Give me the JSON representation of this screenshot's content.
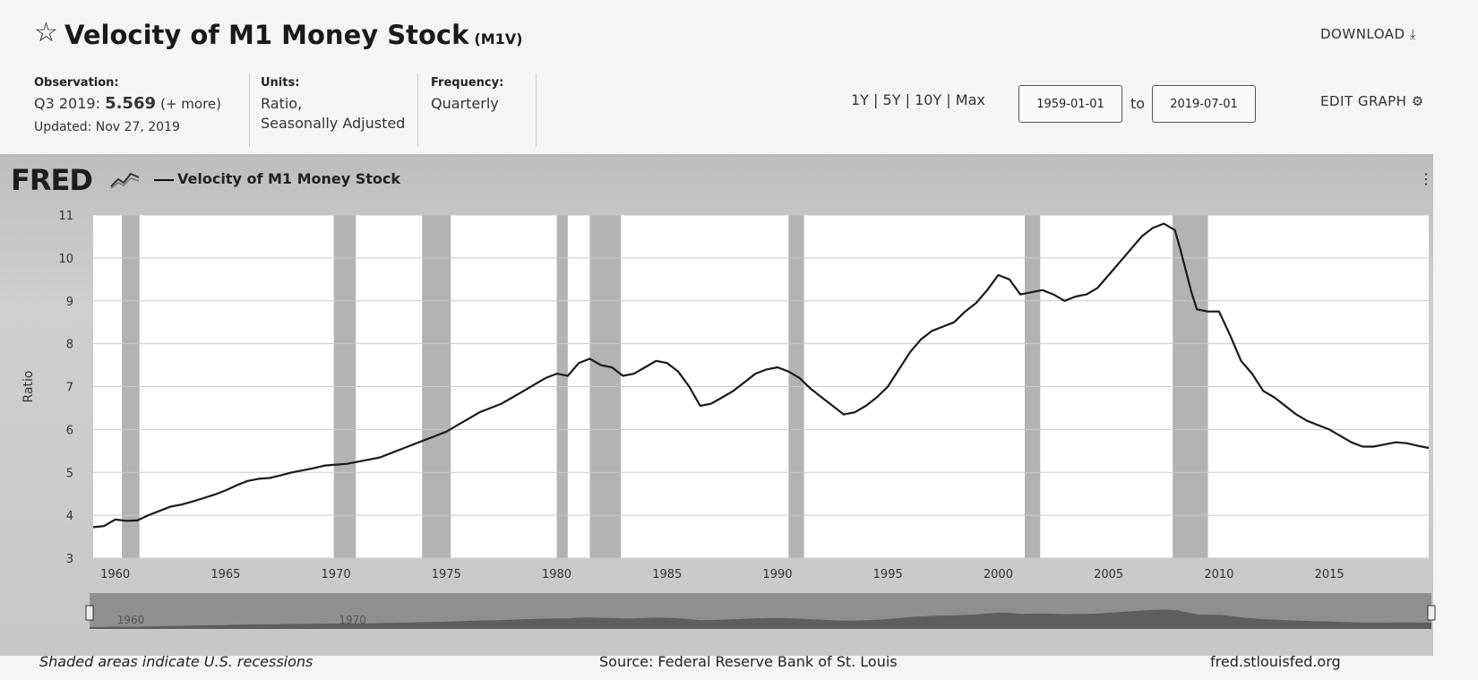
{
  "header": {
    "title": "Velocity of M1 Money Stock",
    "series_code": "(M1V)",
    "download_label": "DOWNLOAD"
  },
  "observation": {
    "label": "Observation:",
    "period": "Q3 2019:",
    "value": "5.569",
    "more": "(+ more)",
    "updated": "Updated: Nov 27, 2019"
  },
  "units": {
    "label": "Units:",
    "line1": "Ratio,",
    "line2": "Seasonally Adjusted"
  },
  "frequency": {
    "label": "Frequency:",
    "value": "Quarterly"
  },
  "range_controls": {
    "options": [
      "1Y",
      "5Y",
      "10Y",
      "Max"
    ],
    "separator": "|",
    "start_date": "1959-01-01",
    "to_label": "to",
    "end_date": "2019-07-01"
  },
  "edit_graph_label": "EDIT GRAPH",
  "chart_panel": {
    "logo": "FRED",
    "legend": "Velocity of M1 Money Stock"
  },
  "footer": {
    "note": "Shaded areas indicate U.S. recessions",
    "source": "Source: Federal Reserve Bank of St. Louis",
    "url": "fred.stlouisfed.org"
  },
  "navigator": {
    "labels": [
      "1960",
      "1970"
    ]
  },
  "colors": {
    "line": "#1a1a1a",
    "recession": "#b3b3b3",
    "plot_bg": "#ffffff",
    "grid": "#c9c9c9"
  },
  "chart_data": {
    "type": "line",
    "title": "",
    "xlabel": "",
    "ylabel": "Ratio",
    "xlim": [
      1959.0,
      2019.5
    ],
    "ylim": [
      3,
      11
    ],
    "y_ticks": [
      3,
      4,
      5,
      6,
      7,
      8,
      9,
      10,
      11
    ],
    "x_ticks": [
      1960,
      1965,
      1970,
      1975,
      1980,
      1985,
      1990,
      1995,
      2000,
      2005,
      2010,
      2015
    ],
    "grid": true,
    "legend": "top-left",
    "recessions": [
      [
        1960.3,
        1961.1
      ],
      [
        1969.9,
        1970.9
      ],
      [
        1973.9,
        1975.2
      ],
      [
        1980.0,
        1980.5
      ],
      [
        1981.5,
        1982.9
      ],
      [
        1990.5,
        1991.2
      ],
      [
        2001.2,
        2001.9
      ],
      [
        2007.9,
        2009.5
      ]
    ],
    "series": [
      {
        "name": "Velocity of M1 Money Stock",
        "x": [
          1959.0,
          1959.5,
          1960.0,
          1960.5,
          1961.0,
          1961.5,
          1962.0,
          1962.5,
          1963.0,
          1963.5,
          1964.0,
          1964.5,
          1965.0,
          1965.5,
          1966.0,
          1966.5,
          1967.0,
          1967.5,
          1968.0,
          1968.5,
          1969.0,
          1969.5,
          1970.0,
          1970.5,
          1971.0,
          1971.5,
          1972.0,
          1972.5,
          1973.0,
          1973.5,
          1974.0,
          1974.5,
          1975.0,
          1975.5,
          1976.0,
          1976.5,
          1977.0,
          1977.5,
          1978.0,
          1978.5,
          1979.0,
          1979.5,
          1980.0,
          1980.5,
          1981.0,
          1981.5,
          1982.0,
          1982.5,
          1983.0,
          1983.5,
          1984.0,
          1984.5,
          1985.0,
          1985.5,
          1986.0,
          1986.5,
          1987.0,
          1987.5,
          1988.0,
          1988.5,
          1989.0,
          1989.5,
          1990.0,
          1990.5,
          1991.0,
          1991.5,
          1992.0,
          1992.5,
          1993.0,
          1993.5,
          1994.0,
          1994.5,
          1995.0,
          1995.5,
          1996.0,
          1996.5,
          1997.0,
          1997.5,
          1998.0,
          1998.5,
          1999.0,
          1999.5,
          2000.0,
          2000.5,
          2001.0,
          2001.5,
          2002.0,
          2002.5,
          2003.0,
          2003.5,
          2004.0,
          2004.5,
          2005.0,
          2005.5,
          2006.0,
          2006.5,
          2007.0,
          2007.5,
          2008.0,
          2008.25,
          2008.5,
          2008.75,
          2009.0,
          2009.5,
          2010.0,
          2010.5,
          2011.0,
          2011.5,
          2012.0,
          2012.5,
          2013.0,
          2013.5,
          2014.0,
          2014.5,
          2015.0,
          2015.5,
          2016.0,
          2016.5,
          2017.0,
          2017.5,
          2018.0,
          2018.5,
          2019.0,
          2019.5
        ],
        "values": [
          3.72,
          3.75,
          3.9,
          3.87,
          3.88,
          4.0,
          4.1,
          4.2,
          4.25,
          4.32,
          4.4,
          4.48,
          4.58,
          4.7,
          4.8,
          4.85,
          4.87,
          4.93,
          5.0,
          5.05,
          5.1,
          5.16,
          5.18,
          5.2,
          5.25,
          5.3,
          5.35,
          5.45,
          5.55,
          5.65,
          5.75,
          5.85,
          5.95,
          6.1,
          6.25,
          6.4,
          6.5,
          6.6,
          6.75,
          6.9,
          7.05,
          7.2,
          7.3,
          7.25,
          7.55,
          7.65,
          7.5,
          7.45,
          7.25,
          7.3,
          7.45,
          7.6,
          7.55,
          7.35,
          7.0,
          6.55,
          6.6,
          6.75,
          6.9,
          7.1,
          7.3,
          7.4,
          7.45,
          7.35,
          7.2,
          6.95,
          6.75,
          6.55,
          6.35,
          6.4,
          6.55,
          6.75,
          7.0,
          7.4,
          7.8,
          8.1,
          8.3,
          8.4,
          8.5,
          8.75,
          8.95,
          9.25,
          9.6,
          9.5,
          9.15,
          9.2,
          9.25,
          9.15,
          9.0,
          9.1,
          9.15,
          9.3,
          9.6,
          9.9,
          10.2,
          10.5,
          10.7,
          10.8,
          10.65,
          10.2,
          9.7,
          9.2,
          8.8,
          8.75,
          8.75,
          8.2,
          7.6,
          7.3,
          6.9,
          6.75,
          6.55,
          6.35,
          6.2,
          6.1,
          6.0,
          5.85,
          5.7,
          5.6,
          5.6,
          5.65,
          5.7,
          5.68,
          5.62,
          5.57
        ]
      }
    ]
  }
}
